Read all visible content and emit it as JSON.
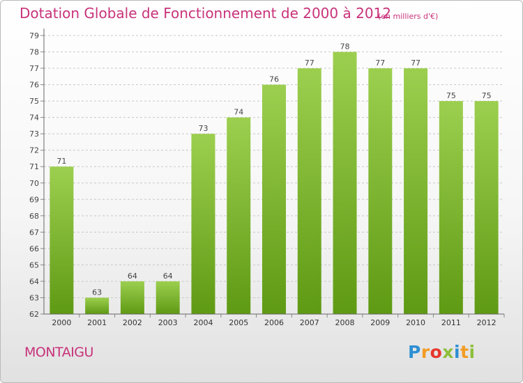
{
  "title": "Dotation Globale de Fonctionnement de 2000 à 2012",
  "unit_note": "(en milliers d'€)",
  "place": "MONTAIGU",
  "logo": "Proxiti",
  "colors": {
    "title": "#c8327a",
    "bar_light": "#9ccf4f",
    "bar_dark": "#5f9a14",
    "grid": "#c8c8c8",
    "logo_p": "#2d8fd2",
    "logo_r": "#f29c24",
    "logo_o": "#e6362c",
    "logo_x": "#8dbf3b",
    "logo_i": "#2d8fd2",
    "logo_t": "#f29c24",
    "logo_i2": "#8dbf3b"
  },
  "chart_data": {
    "type": "bar",
    "categories": [
      "2000",
      "2001",
      "2002",
      "2003",
      "2004",
      "2005",
      "2006",
      "2007",
      "2008",
      "2009",
      "2010",
      "2011",
      "2012"
    ],
    "values": [
      71,
      63,
      64,
      64,
      73,
      74,
      76,
      77,
      78,
      77,
      77,
      75,
      75
    ],
    "data_labels": [
      "71",
      "63",
      "64",
      "64",
      "73",
      "74",
      "76",
      "77",
      "78",
      "77",
      "77",
      "75",
      "75"
    ],
    "ylim": [
      62,
      79
    ],
    "yticks": [
      "62",
      "63",
      "64",
      "65",
      "66",
      "67",
      "68",
      "69",
      "70",
      "71",
      "72",
      "73",
      "74",
      "75",
      "76",
      "77",
      "78",
      "79"
    ],
    "grid": true
  }
}
